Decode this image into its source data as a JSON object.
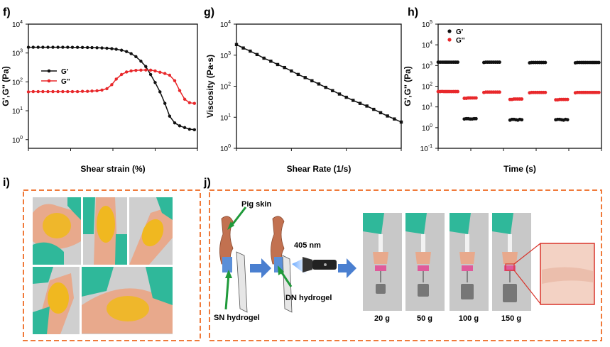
{
  "panel_letters": {
    "f": "f)",
    "g": "g)",
    "h": "h)",
    "i": "i)",
    "j": "j)"
  },
  "colors": {
    "black_series": "#111111",
    "red_series": "#e8282b",
    "dash_border": "#f07a3a",
    "arrow_blue": "#4a7fd0",
    "glove_green": "#2fb89a",
    "skin": "#e8a98c",
    "hydrogel": "#f0b820",
    "pointer_green": "#1f9a3a",
    "inset_frame": "#d9342b"
  },
  "chart_data": [
    {
      "id": "f",
      "type": "line",
      "xlabel": "Shear strain (%)",
      "ylabel": "G',G'' (Pa)",
      "xscale": "log",
      "yscale": "log",
      "xlim": [
        0.1,
        1000
      ],
      "ylim": [
        0.5,
        10000
      ],
      "xticks": [
        "0.1",
        "1",
        "10",
        "100",
        "1000"
      ],
      "yticks": [
        [
          "10",
          "0"
        ],
        [
          "10",
          "1"
        ],
        [
          "10",
          "2"
        ],
        [
          "10",
          "3"
        ],
        [
          "10",
          "4"
        ]
      ],
      "legend_position": "left",
      "series": [
        {
          "name": "G'",
          "color": "#111111",
          "x": [
            0.1,
            0.13,
            0.17,
            0.22,
            0.29,
            0.38,
            0.5,
            0.65,
            0.85,
            1.1,
            1.45,
            1.9,
            2.5,
            3.2,
            4.2,
            5.5,
            7.2,
            9.4,
            12,
            16,
            21,
            27,
            35,
            46,
            60,
            78,
            100,
            130,
            170,
            220,
            290,
            380,
            500,
            650,
            850
          ],
          "y": [
            1580,
            1580,
            1580,
            1580,
            1580,
            1580,
            1580,
            1580,
            1580,
            1575,
            1570,
            1560,
            1550,
            1540,
            1520,
            1500,
            1460,
            1410,
            1350,
            1250,
            1120,
            950,
            750,
            520,
            340,
            180,
            95,
            45,
            18,
            6.5,
            3.8,
            3.0,
            2.6,
            2.3,
            2.2
          ]
        },
        {
          "name": "G''",
          "color": "#e8282b",
          "x": [
            0.1,
            0.13,
            0.17,
            0.22,
            0.29,
            0.38,
            0.5,
            0.65,
            0.85,
            1.1,
            1.45,
            1.9,
            2.5,
            3.2,
            4.2,
            5.5,
            7.2,
            9.4,
            12,
            16,
            21,
            27,
            35,
            46,
            60,
            78,
            100,
            130,
            170,
            220,
            290,
            380,
            500,
            650,
            850
          ],
          "y": [
            45,
            46,
            46,
            46,
            46,
            46,
            46,
            46,
            46,
            46,
            46,
            47,
            47,
            48,
            49,
            52,
            58,
            80,
            125,
            180,
            220,
            240,
            250,
            255,
            258,
            255,
            240,
            215,
            195,
            170,
            110,
            50,
            25,
            19,
            18
          ]
        }
      ]
    },
    {
      "id": "g",
      "type": "line",
      "xlabel": "Shear Rate (1/s)",
      "ylabel": "Viscosity (Pa·s)",
      "xscale": "log",
      "yscale": "log",
      "xlim": [
        0.1,
        100
      ],
      "ylim": [
        1,
        10000
      ],
      "xticks": [
        "0.1",
        "1",
        "10",
        "100"
      ],
      "yticks": [
        [
          "10",
          "0"
        ],
        [
          "10",
          "1"
        ],
        [
          "10",
          "2"
        ],
        [
          "10",
          "3"
        ],
        [
          "10",
          "4"
        ]
      ],
      "series": [
        {
          "name": "",
          "color": "#111111",
          "x": [
            0.1,
            0.133,
            0.178,
            0.237,
            0.316,
            0.422,
            0.562,
            0.75,
            1.0,
            1.33,
            1.78,
            2.37,
            3.16,
            4.22,
            5.62,
            7.5,
            10,
            13.3,
            17.8,
            23.7,
            31.6,
            42.2,
            56.2,
            75,
            100
          ],
          "y": [
            2200,
            1700,
            1350,
            1050,
            800,
            640,
            500,
            400,
            310,
            240,
            190,
            150,
            118,
            92,
            72,
            56,
            44,
            35,
            28,
            23,
            18,
            14,
            11,
            8.8,
            7.0
          ]
        }
      ]
    },
    {
      "id": "h",
      "type": "scatter",
      "xlabel": "Time (s)",
      "ylabel": "G',G'' (Pa)",
      "xscale": "linear",
      "yscale": "log",
      "xlim": [
        0,
        2500
      ],
      "ylim": [
        0.1,
        100000
      ],
      "xticks": [
        "0",
        "500",
        "1000",
        "1500",
        "2000",
        "2500"
      ],
      "yticks": [
        [
          "10",
          "-1"
        ],
        [
          "10",
          "0"
        ],
        [
          "10",
          "1"
        ],
        [
          "10",
          "2"
        ],
        [
          "10",
          "3"
        ],
        [
          "10",
          "4"
        ],
        [
          "10",
          "5"
        ]
      ],
      "legend_position": "top-left",
      "series": [
        {
          "name": "G'",
          "color": "#111111",
          "x": [
            0,
            30,
            60,
            90,
            120,
            150,
            180,
            210,
            240,
            270,
            300,
            400,
            430,
            460,
            490,
            520,
            550,
            580,
            700,
            730,
            760,
            790,
            820,
            850,
            880,
            910,
            940,
            1100,
            1130,
            1160,
            1190,
            1220,
            1250,
            1280,
            1400,
            1430,
            1460,
            1490,
            1520,
            1550,
            1580,
            1610,
            1640,
            1800,
            1830,
            1860,
            1890,
            1920,
            1950,
            1980,
            2100,
            2130,
            2160,
            2190,
            2220,
            2250,
            2280,
            2310,
            2340,
            2370,
            2400,
            2430,
            2460
          ],
          "y": [
            1450,
            1450,
            1450,
            1450,
            1450,
            1450,
            1450,
            1450,
            1450,
            1450,
            1450,
            2.6,
            2.7,
            2.7,
            2.6,
            2.6,
            2.7,
            2.7,
            1400,
            1450,
            1450,
            1450,
            1450,
            1450,
            1450,
            1450,
            1450,
            2.3,
            2.5,
            2.5,
            2.4,
            2.3,
            2.5,
            2.4,
            1350,
            1400,
            1400,
            1400,
            1400,
            1400,
            1400,
            1400,
            1400,
            2.4,
            2.5,
            2.5,
            2.4,
            2.3,
            2.5,
            2.4,
            1350,
            1400,
            1400,
            1400,
            1400,
            1400,
            1400,
            1400,
            1400,
            1400,
            1400,
            1400,
            1400
          ]
        },
        {
          "name": "G''",
          "color": "#e8282b",
          "x": [
            0,
            30,
            60,
            90,
            120,
            150,
            180,
            210,
            240,
            270,
            300,
            400,
            430,
            460,
            490,
            520,
            550,
            580,
            700,
            730,
            760,
            790,
            820,
            850,
            880,
            910,
            940,
            1100,
            1130,
            1160,
            1190,
            1220,
            1250,
            1280,
            1400,
            1430,
            1460,
            1490,
            1520,
            1550,
            1580,
            1610,
            1640,
            1800,
            1830,
            1860,
            1890,
            1920,
            1950,
            1980,
            2100,
            2130,
            2160,
            2190,
            2220,
            2250,
            2280,
            2310,
            2340,
            2370,
            2400,
            2430,
            2460
          ],
          "y": [
            55,
            55,
            56,
            55,
            55,
            55,
            55,
            55,
            55,
            55,
            55,
            26,
            26,
            27,
            27,
            27,
            27,
            27,
            50,
            52,
            52,
            52,
            52,
            52,
            52,
            52,
            52,
            23,
            23,
            24,
            24,
            24,
            24,
            24,
            48,
            50,
            50,
            50,
            50,
            50,
            50,
            50,
            50,
            22,
            22,
            23,
            23,
            23,
            23,
            23,
            48,
            50,
            50,
            50,
            50,
            50,
            50,
            50,
            50,
            50,
            50,
            50,
            50
          ]
        }
      ]
    }
  ],
  "panel_j": {
    "pig_skin_label": "Pig skin",
    "light_label": "405 nm",
    "dn_label": "DN hydrogel",
    "sn_label": "SN hydrogel",
    "weights": [
      "20 g",
      "50 g",
      "100 g",
      "150 g"
    ]
  }
}
